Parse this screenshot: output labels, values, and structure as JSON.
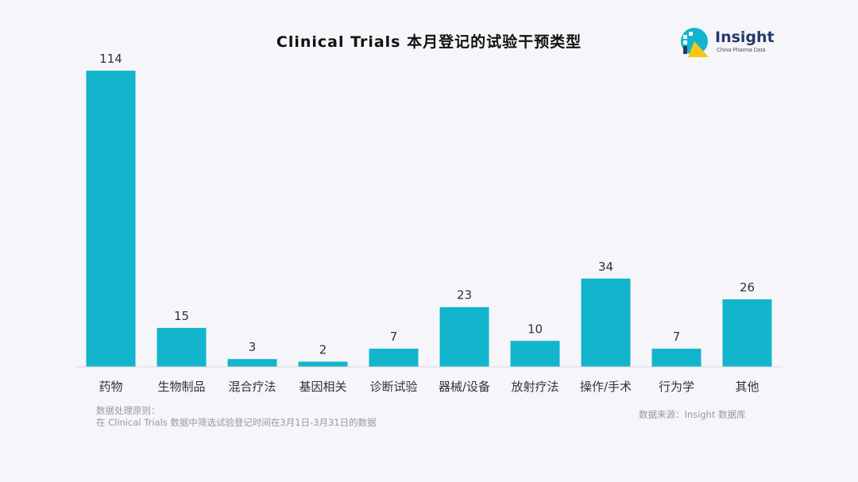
{
  "chart_data": {
    "type": "bar",
    "title": "Clinical Trials 本月登记的试验干预类型",
    "categories": [
      "药物",
      "生物制品",
      "混合疗法",
      "基因相关",
      "诊断试验",
      "器械/设备",
      "放射疗法",
      "操作/手术",
      "行为学",
      "其他"
    ],
    "values": [
      114,
      15,
      3,
      2,
      7,
      23,
      10,
      34,
      7,
      26
    ],
    "xlabel": "",
    "ylabel": "",
    "ylim": [
      0,
      114
    ],
    "grid": false,
    "legend": "none",
    "bar_color": "#12b5cb"
  },
  "logo": {
    "name": "Insight",
    "subtitle": "China Pharma Data",
    "colors": [
      "#12b5cb",
      "#27396b",
      "#f5c518"
    ]
  },
  "note": {
    "line1": "数据处理原则：",
    "line2": "在 Clinical Trials 数据中筛选试验登记时间在3月1日-3月31日的数据"
  },
  "source": "数据来源：Insight 数据库"
}
